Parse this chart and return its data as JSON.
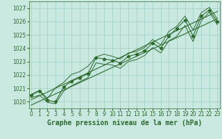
{
  "x": [
    0,
    1,
    2,
    3,
    4,
    5,
    6,
    7,
    8,
    9,
    10,
    11,
    12,
    13,
    14,
    15,
    16,
    17,
    18,
    19,
    20,
    21,
    22,
    23
  ],
  "y_main": [
    1020.5,
    1020.8,
    1020.1,
    1020.0,
    1021.1,
    1021.55,
    1021.8,
    1022.1,
    1023.3,
    1023.2,
    1023.1,
    1022.9,
    1023.4,
    1023.55,
    1023.8,
    1024.4,
    1024.0,
    1024.9,
    1025.5,
    1026.1,
    1024.9,
    1026.4,
    1026.85,
    1026.0
  ],
  "y_upper": [
    1020.55,
    1020.85,
    1020.25,
    1021.05,
    1021.45,
    1022.05,
    1022.25,
    1022.65,
    1023.35,
    1023.55,
    1023.4,
    1023.2,
    1023.65,
    1023.75,
    1024.05,
    1024.65,
    1024.25,
    1025.25,
    1025.65,
    1026.4,
    1025.35,
    1026.65,
    1027.05,
    1026.2
  ],
  "y_lower": [
    1020.3,
    1020.5,
    1019.95,
    1019.85,
    1020.8,
    1021.2,
    1021.5,
    1021.8,
    1022.9,
    1022.8,
    1022.75,
    1022.5,
    1023.0,
    1023.15,
    1023.45,
    1024.05,
    1023.65,
    1024.55,
    1024.9,
    1025.7,
    1024.5,
    1026.05,
    1026.7,
    1025.75
  ],
  "trend1": [
    1019.75,
    1026.2
  ],
  "trend2": [
    1020.15,
    1026.75
  ],
  "ylim": [
    1019.5,
    1027.5
  ],
  "xlim": [
    -0.3,
    23.3
  ],
  "yticks": [
    1020,
    1021,
    1022,
    1023,
    1024,
    1025,
    1026,
    1027
  ],
  "xticks": [
    0,
    1,
    2,
    3,
    4,
    5,
    6,
    7,
    8,
    9,
    10,
    11,
    12,
    13,
    14,
    15,
    16,
    17,
    18,
    19,
    20,
    21,
    22,
    23
  ],
  "line_color": "#2d6a2d",
  "bg_color": "#c8e8e0",
  "grid_color": "#9ecec8",
  "title": "Graphe pression niveau de la mer (hPa)",
  "title_fontsize": 7,
  "tick_fontsize": 5.5
}
